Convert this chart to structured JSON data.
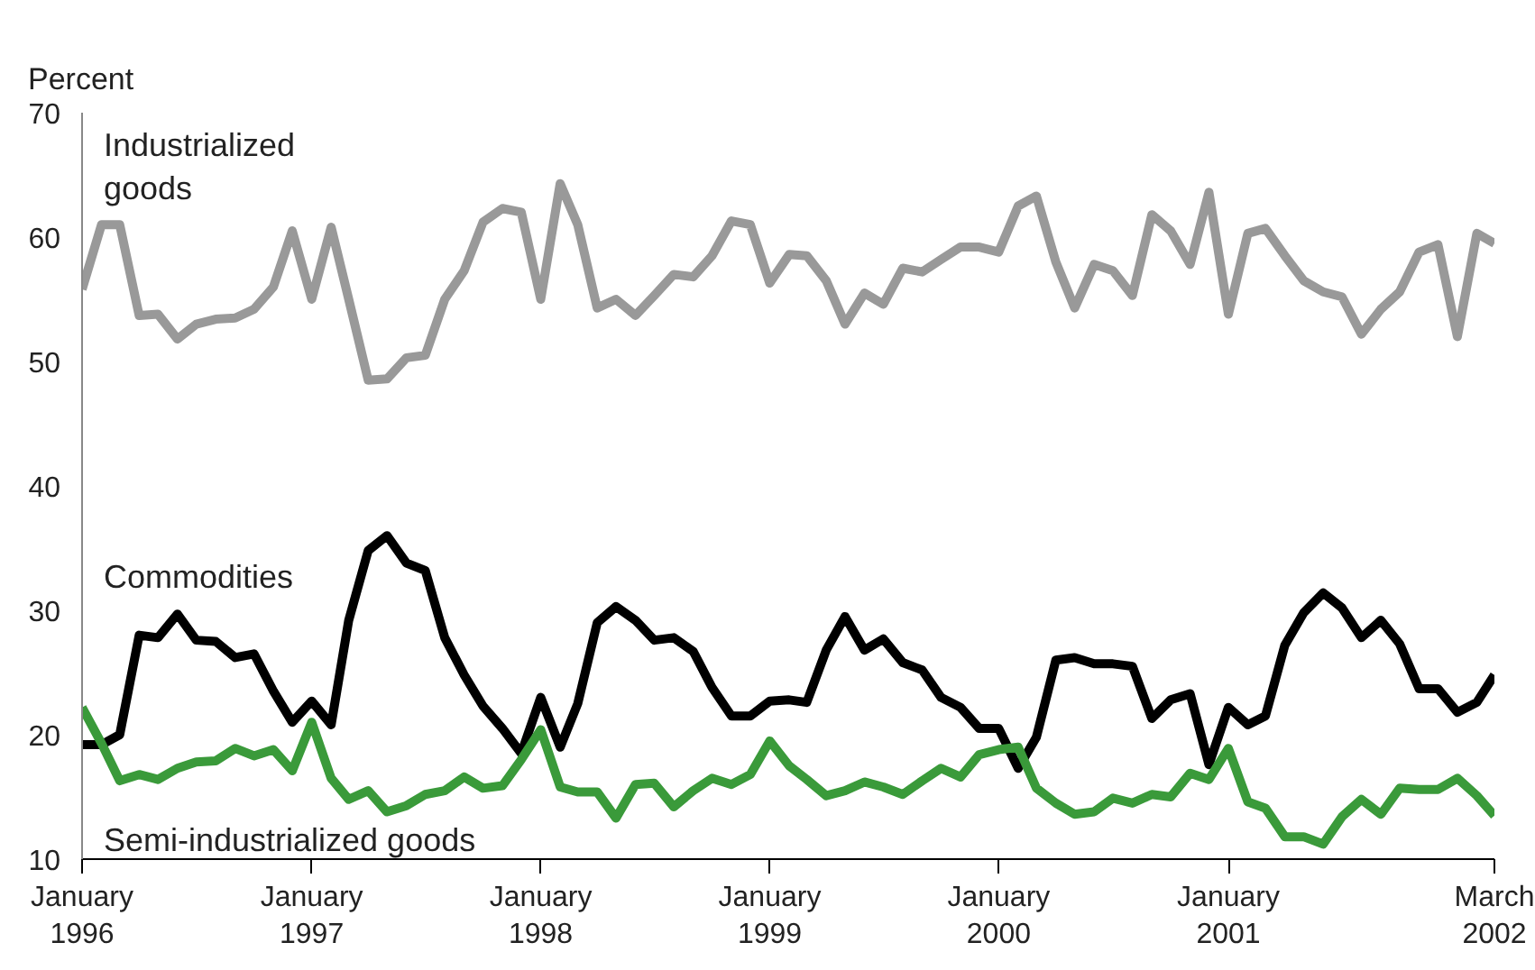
{
  "chart_data": {
    "type": "line",
    "ylabel": "Percent",
    "x": [
      "1996-01",
      "1996-02",
      "1996-03",
      "1996-04",
      "1996-05",
      "1996-06",
      "1996-07",
      "1996-08",
      "1996-09",
      "1996-10",
      "1996-11",
      "1996-12",
      "1997-01",
      "1997-02",
      "1997-03",
      "1997-04",
      "1997-05",
      "1997-06",
      "1997-07",
      "1997-08",
      "1997-09",
      "1997-10",
      "1997-11",
      "1997-12",
      "1998-01",
      "1998-02",
      "1998-03",
      "1998-04",
      "1998-05",
      "1998-06",
      "1998-07",
      "1998-08",
      "1998-09",
      "1998-10",
      "1998-11",
      "1998-12",
      "1999-01",
      "1999-02",
      "1999-03",
      "1999-04",
      "1999-05",
      "1999-06",
      "1999-07",
      "1999-08",
      "1999-09",
      "1999-10",
      "1999-11",
      "1999-12",
      "2000-01",
      "2000-02",
      "2000-03",
      "2000-04",
      "2000-05",
      "2000-06",
      "2000-07",
      "2000-08",
      "2000-09",
      "2000-10",
      "2000-11",
      "2000-12",
      "2001-01",
      "2001-02",
      "2001-03",
      "2001-04",
      "2001-05",
      "2001-06",
      "2001-07",
      "2001-08",
      "2001-09",
      "2001-10",
      "2001-11",
      "2001-12",
      "2002-01",
      "2002-02",
      "2002-03"
    ],
    "series": [
      {
        "name": "Industrialized goods",
        "color": "#999999",
        "values": [
          55.8,
          61,
          61,
          53.7,
          53.8,
          51.8,
          53,
          53.4,
          53.5,
          54.2,
          56,
          60.5,
          55,
          60.8,
          55,
          48.5,
          48.6,
          50.3,
          50.5,
          55,
          57.3,
          61.2,
          62.3,
          62,
          55,
          64.3,
          61,
          54.3,
          55,
          53.7,
          55.3,
          57,
          56.8,
          58.5,
          61.3,
          61,
          56.3,
          58.6,
          58.5,
          56.5,
          53,
          55.5,
          54.6,
          57.5,
          57.2,
          58.2,
          59.2,
          59.2,
          58.8,
          62.5,
          63.3,
          58,
          54.3,
          57.8,
          57.3,
          55.3,
          61.8,
          60.5,
          57.8,
          63.6,
          53.8,
          60.3,
          60.7,
          58.5,
          56.5,
          55.6,
          55.2,
          52.2,
          54.2,
          55.6,
          58.8,
          59.4,
          52,
          60.3,
          59.5
        ]
      },
      {
        "name": "Commodities",
        "color": "#000000",
        "values": [
          19.2,
          19.2,
          20,
          28,
          27.8,
          29.7,
          27.6,
          27.5,
          26.2,
          26.5,
          23.5,
          21,
          22.7,
          20.8,
          29.2,
          34.8,
          36,
          33.8,
          33.2,
          27.8,
          24.8,
          22.3,
          20.5,
          18.5,
          23,
          19,
          22.5,
          29,
          30.3,
          29.2,
          27.6,
          27.8,
          26.7,
          23.8,
          21.5,
          21.5,
          22.7,
          22.8,
          22.6,
          26.8,
          29.5,
          26.8,
          27.7,
          25.8,
          25.2,
          23,
          22.2,
          20.5,
          20.5,
          17.3,
          19.8,
          26,
          26.2,
          25.7,
          25.7,
          25.5,
          21.3,
          22.8,
          23.3,
          17.6,
          22.2,
          20.8,
          21.5,
          27.2,
          29.8,
          31.4,
          30.2,
          27.8,
          29.2,
          27.3,
          23.7,
          23.7,
          21.8,
          22.6,
          24.8
        ]
      },
      {
        "name": "Semi-industrialized goods",
        "color": "#3a9a3a",
        "values": [
          22.2,
          19.3,
          16.3,
          16.8,
          16.4,
          17.3,
          17.8,
          17.9,
          18.9,
          18.3,
          18.8,
          17.1,
          21,
          16.5,
          14.8,
          15.5,
          13.8,
          14.3,
          15.2,
          15.5,
          16.6,
          15.7,
          15.9,
          18,
          20.4,
          15.8,
          15.4,
          15.4,
          13.3,
          16,
          16.1,
          14.2,
          15.5,
          16.5,
          16,
          16.8,
          19.5,
          17.5,
          16.4,
          15.1,
          15.5,
          16.2,
          15.8,
          15.2,
          16.3,
          17.3,
          16.6,
          18.4,
          18.8,
          19,
          15.7,
          14.5,
          13.6,
          13.8,
          14.9,
          14.5,
          15.2,
          15,
          16.9,
          16.4,
          18.9,
          14.6,
          14.1,
          11.8,
          11.8,
          11.2,
          13.4,
          14.8,
          13.6,
          15.7,
          15.6,
          15.6,
          16.5,
          15.1,
          13.5
        ]
      }
    ],
    "xlim": [
      "1996-01",
      "2002-03"
    ],
    "xticks": [
      {
        "value": "1996-01",
        "label": "January\n1996"
      },
      {
        "value": "1997-01",
        "label": "January\n1997"
      },
      {
        "value": "1998-01",
        "label": "January\n1998"
      },
      {
        "value": "1999-01",
        "label": "January\n1999"
      },
      {
        "value": "2000-01",
        "label": "January\n2000"
      },
      {
        "value": "2001-01",
        "label": "January\n2001"
      },
      {
        "value": "2002-03",
        "label": "March\n2002"
      }
    ],
    "ylim": [
      10,
      70
    ],
    "yticks": [
      10,
      20,
      30,
      40,
      50,
      60,
      70
    ],
    "grid": false,
    "line_style": "solid",
    "marker": "none"
  }
}
